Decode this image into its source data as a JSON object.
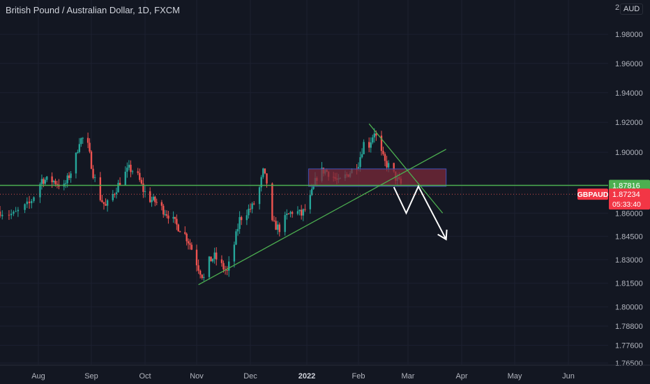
{
  "header": {
    "title": "British Pound / Australian Dollar, 1D, FXCM",
    "currency": "AUD"
  },
  "price_axis": {
    "tick_labels": [
      "1.98000",
      "1.96000",
      "1.94000",
      "1.92000",
      "1.90000",
      "1.86000",
      "1.84500",
      "1.83000",
      "1.81500",
      "1.80000",
      "1.78800",
      "1.77600",
      "1.76500"
    ],
    "top_label": "2."
  },
  "time_axis": {
    "labels": [
      "Aug",
      "Sep",
      "Oct",
      "Nov",
      "Dec",
      "2022",
      "Feb",
      "Mar",
      "Apr",
      "May",
      "Jun"
    ]
  },
  "markers": {
    "level": {
      "value": 1.87816,
      "label": "1.87816",
      "color": "#4caf50"
    },
    "current": {
      "symbol": "GBPAUD",
      "value": 1.87234,
      "label": "1.87234",
      "countdown": "05:33:40",
      "color": "#f23645"
    }
  },
  "colors": {
    "up": "#26a69a",
    "down": "#ef5350",
    "bg": "#131722",
    "trend": "#4caf50",
    "zone": "#7b2a3a",
    "zone_border": "#3f51b5",
    "projection": "#ffffff"
  },
  "chart_data": {
    "type": "candlestick",
    "symbol": "GBPAUD",
    "interval": "1D",
    "ylim": [
      1.765,
      2.0
    ],
    "y_scale": "log",
    "x": [
      "2021-07-15",
      "2022-06-30"
    ],
    "horizontal_level": 1.87816,
    "last_price": 1.87234,
    "supply_zone": {
      "from_date": "2022-01-02",
      "to_date": "2022-03-23",
      "low": 1.8775,
      "high": 1.889
    },
    "trendlines": [
      {
        "from": [
          "2021-11-02",
          1.814
        ],
        "to": [
          "2022-03-23",
          1.902
        ]
      },
      {
        "from": [
          "2022-02-07",
          1.919
        ],
        "to": [
          "2022-03-21",
          1.86
        ]
      }
    ],
    "projection_path": [
      [
        "2022-02-21",
        1.877
      ],
      [
        "2022-02-28",
        1.86
      ],
      [
        "2022-03-07",
        1.8775
      ],
      [
        "2022-03-23",
        1.843
      ]
    ],
    "candles_trend_anchors": [
      [
        "2021-07-15",
        1.861
      ],
      [
        "2021-07-21",
        1.859
      ],
      [
        "2021-07-28",
        1.866
      ],
      [
        "2021-08-03",
        1.882
      ],
      [
        "2021-08-10",
        1.881
      ],
      [
        "2021-08-16",
        1.877
      ],
      [
        "2021-08-22",
        1.892
      ],
      [
        "2021-08-25",
        1.908
      ],
      [
        "2021-08-29",
        1.91
      ],
      [
        "2021-09-02",
        1.886
      ],
      [
        "2021-09-06",
        1.87
      ],
      [
        "2021-09-09",
        1.864
      ],
      [
        "2021-09-14",
        1.874
      ],
      [
        "2021-09-18",
        1.883
      ],
      [
        "2021-09-22",
        1.889
      ],
      [
        "2021-09-26",
        1.887
      ],
      [
        "2021-09-30",
        1.875
      ],
      [
        "2021-10-04",
        1.869
      ],
      [
        "2021-10-08",
        1.867
      ],
      [
        "2021-10-12",
        1.862
      ],
      [
        "2021-10-16",
        1.858
      ],
      [
        "2021-10-20",
        1.852
      ],
      [
        "2021-10-24",
        1.848
      ],
      [
        "2021-10-28",
        1.84
      ],
      [
        "2021-11-02",
        1.825
      ],
      [
        "2021-11-05",
        1.818
      ],
      [
        "2021-11-08",
        1.829
      ],
      [
        "2021-11-11",
        1.832
      ],
      [
        "2021-11-15",
        1.826
      ],
      [
        "2021-11-18",
        1.822
      ],
      [
        "2021-11-22",
        1.84
      ],
      [
        "2021-11-25",
        1.856
      ],
      [
        "2021-11-29",
        1.861
      ],
      [
        "2021-12-02",
        1.864
      ],
      [
        "2021-12-05",
        1.871
      ],
      [
        "2021-12-08",
        1.887
      ],
      [
        "2021-12-10",
        1.88
      ],
      [
        "2021-12-13",
        1.853
      ],
      [
        "2021-12-17",
        1.85
      ],
      [
        "2021-12-21",
        1.858
      ],
      [
        "2021-12-25",
        1.862
      ],
      [
        "2021-12-29",
        1.859
      ],
      [
        "2022-01-02",
        1.866
      ],
      [
        "2022-01-05",
        1.877
      ],
      [
        "2022-01-08",
        1.887
      ],
      [
        "2022-01-12",
        1.888
      ],
      [
        "2022-01-16",
        1.885
      ],
      [
        "2022-01-20",
        1.88
      ],
      [
        "2022-01-24",
        1.884
      ],
      [
        "2022-01-28",
        1.888
      ],
      [
        "2022-02-01",
        1.893
      ],
      [
        "2022-02-04",
        1.906
      ],
      [
        "2022-02-07",
        1.905
      ],
      [
        "2022-02-10",
        1.914
      ],
      [
        "2022-02-13",
        1.902
      ],
      [
        "2022-02-16",
        1.893
      ],
      [
        "2022-02-19",
        1.89
      ],
      [
        "2022-02-22",
        1.883
      ],
      [
        "2022-02-25",
        1.879
      ],
      [
        "2022-02-27",
        1.872
      ]
    ]
  }
}
